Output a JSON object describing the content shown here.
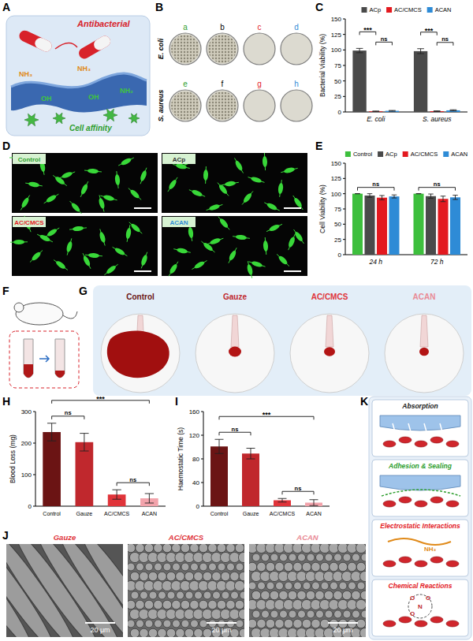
{
  "chart_data": [
    {
      "type": "bar",
      "ylabel": "Bacterial Viability (%)",
      "categories": [
        "E. coli",
        "S. aureus"
      ],
      "series": [
        {
          "name": "ACp",
          "color": "#4a4a4a",
          "values": [
            99,
            98
          ],
          "errors": [
            3.5,
            4
          ]
        },
        {
          "name": "AC/CMCS",
          "color": "#e3191f",
          "values": [
            1,
            1.2
          ],
          "errors": [
            0.5,
            0.6
          ]
        },
        {
          "name": "ACAN",
          "color": "#2e8bd6",
          "values": [
            1.8,
            2.6
          ],
          "errors": [
            0.6,
            0.9
          ]
        }
      ],
      "ylim": [
        0,
        150
      ],
      "yticks": [
        0,
        25,
        50,
        75,
        100,
        125,
        150
      ],
      "legend": "top",
      "brackets": [
        {
          "group": 0,
          "from": 0,
          "to": 1,
          "label": "***"
        },
        {
          "group": 0,
          "from": 1,
          "to": 2,
          "label": "ns"
        },
        {
          "group": 1,
          "from": 0,
          "to": 1,
          "label": "***"
        },
        {
          "group": 1,
          "from": 1,
          "to": 2,
          "label": "ns"
        }
      ]
    },
    {
      "type": "bar",
      "ylabel": "Cell Viability (%)",
      "categories": [
        "24 h",
        "72 h"
      ],
      "series": [
        {
          "name": "Control",
          "color": "#3dbf3d",
          "values": [
            100,
            100
          ],
          "errors": [
            0,
            0
          ]
        },
        {
          "name": "ACp",
          "color": "#4a4a4a",
          "values": [
            97,
            96
          ],
          "errors": [
            3,
            3.5
          ]
        },
        {
          "name": "AC/CMCS",
          "color": "#e3191f",
          "values": [
            93.5,
            91.5
          ],
          "errors": [
            3.5,
            4.5
          ]
        },
        {
          "name": "ACAN",
          "color": "#2e8bd6",
          "values": [
            95.5,
            94
          ],
          "errors": [
            2.5,
            3.5
          ]
        }
      ],
      "ylim": [
        0,
        150
      ],
      "yticks": [
        0,
        25,
        50,
        75,
        100,
        125,
        150
      ],
      "legend": "top",
      "brackets": [
        {
          "group": 0,
          "from": 0,
          "to": 3,
          "label": "ns"
        },
        {
          "group": 1,
          "from": 0,
          "to": 3,
          "label": "ns"
        }
      ]
    },
    {
      "type": "bar",
      "ylabel": "Blood Loss (mg)",
      "categories": [
        "Control",
        "Gauze",
        "AC/CMCS",
        "ACAN"
      ],
      "values": [
        235,
        203,
        37,
        25
      ],
      "errors": [
        28,
        28,
        15,
        15
      ],
      "colors": [
        "#6b1414",
        "#c0282d",
        "#e0343a",
        "#f2a3ab"
      ],
      "ylim": [
        0,
        300
      ],
      "yticks": [
        0,
        100,
        200,
        300
      ],
      "brackets": [
        {
          "from": 0,
          "to": 1,
          "label": "ns"
        },
        {
          "from": 0,
          "to": 3,
          "label": "***"
        },
        {
          "from": 2,
          "to": 3,
          "label": "ns"
        }
      ]
    },
    {
      "type": "bar",
      "ylabel": "Haemostatic Time (s)",
      "categories": [
        "Control",
        "Gauze",
        "AC/CMCS",
        "ACAN"
      ],
      "values": [
        101,
        89,
        10,
        6
      ],
      "errors": [
        12,
        9,
        3,
        5
      ],
      "colors": [
        "#6b1414",
        "#c0282d",
        "#e0343a",
        "#f2a3ab"
      ],
      "ylim": [
        0,
        160
      ],
      "yticks": [
        0,
        40,
        80,
        120,
        160
      ],
      "brackets": [
        {
          "from": 0,
          "to": 1,
          "label": "ns"
        },
        {
          "from": 0,
          "to": 3,
          "label": "***"
        },
        {
          "from": 2,
          "to": 3,
          "label": "ns"
        }
      ]
    }
  ],
  "figure": {
    "panel_labels": [
      "A",
      "B",
      "C",
      "D",
      "E",
      "F",
      "G",
      "H",
      "I",
      "J",
      "K"
    ],
    "schematic": {
      "top_label": "Antibacterial",
      "bottom_label": "Cell affinity",
      "groups": [
        "NH₃",
        "NH₃",
        "OH",
        "OH",
        "NH₂"
      ],
      "colors": [
        "#e08a1a",
        "#e08a1a",
        "#3fc43f",
        "#3fc43f",
        "#3fc43f"
      ]
    },
    "dishes": {
      "rows": [
        "E. coli",
        "S. aureus"
      ],
      "labels": [
        "a",
        "b",
        "c",
        "d",
        "e",
        "f",
        "g",
        "h"
      ],
      "colors": [
        "#2e9e2e",
        "#000000",
        "#e3191f",
        "#2e8bd6",
        "#2e9e2e",
        "#000000",
        "#e3191f",
        "#2e8bd6"
      ],
      "colonies": [
        true,
        true,
        false,
        false,
        true,
        true,
        false,
        false
      ]
    },
    "cells": {
      "labels": [
        "Control",
        "ACp",
        "AC/CMCS",
        "ACAN"
      ],
      "colors": [
        "#2e9e2e",
        "#333333",
        "#e3191f",
        "#2e8bd6"
      ]
    },
    "blood": {
      "labels": [
        "Control",
        "Gauze",
        "AC/CMCS",
        "ACAN"
      ],
      "colors": [
        "#6b1414",
        "#c0282d",
        "#e0343a",
        "#e98a95"
      ]
    },
    "sem": {
      "labels": [
        "Gauze",
        "AC/CMCS",
        "ACAN"
      ],
      "colors": [
        "#e0343a",
        "#e0343a",
        "#e98a95"
      ],
      "scale_bars": [
        "20 μm",
        "20 μm",
        "20 μm"
      ]
    },
    "mechanisms": {
      "labels": [
        "Absorption",
        "Adhesion & Sealing",
        "Electrostatic Interactions",
        "Chemical Reactions"
      ],
      "colors": [
        "#222222",
        "#2e9e2e",
        "#e3191f",
        "#e3191f"
      ],
      "electrostatic_group": "NH₃",
      "chemical_atoms": [
        "O",
        "O",
        "N",
        "O"
      ]
    }
  }
}
